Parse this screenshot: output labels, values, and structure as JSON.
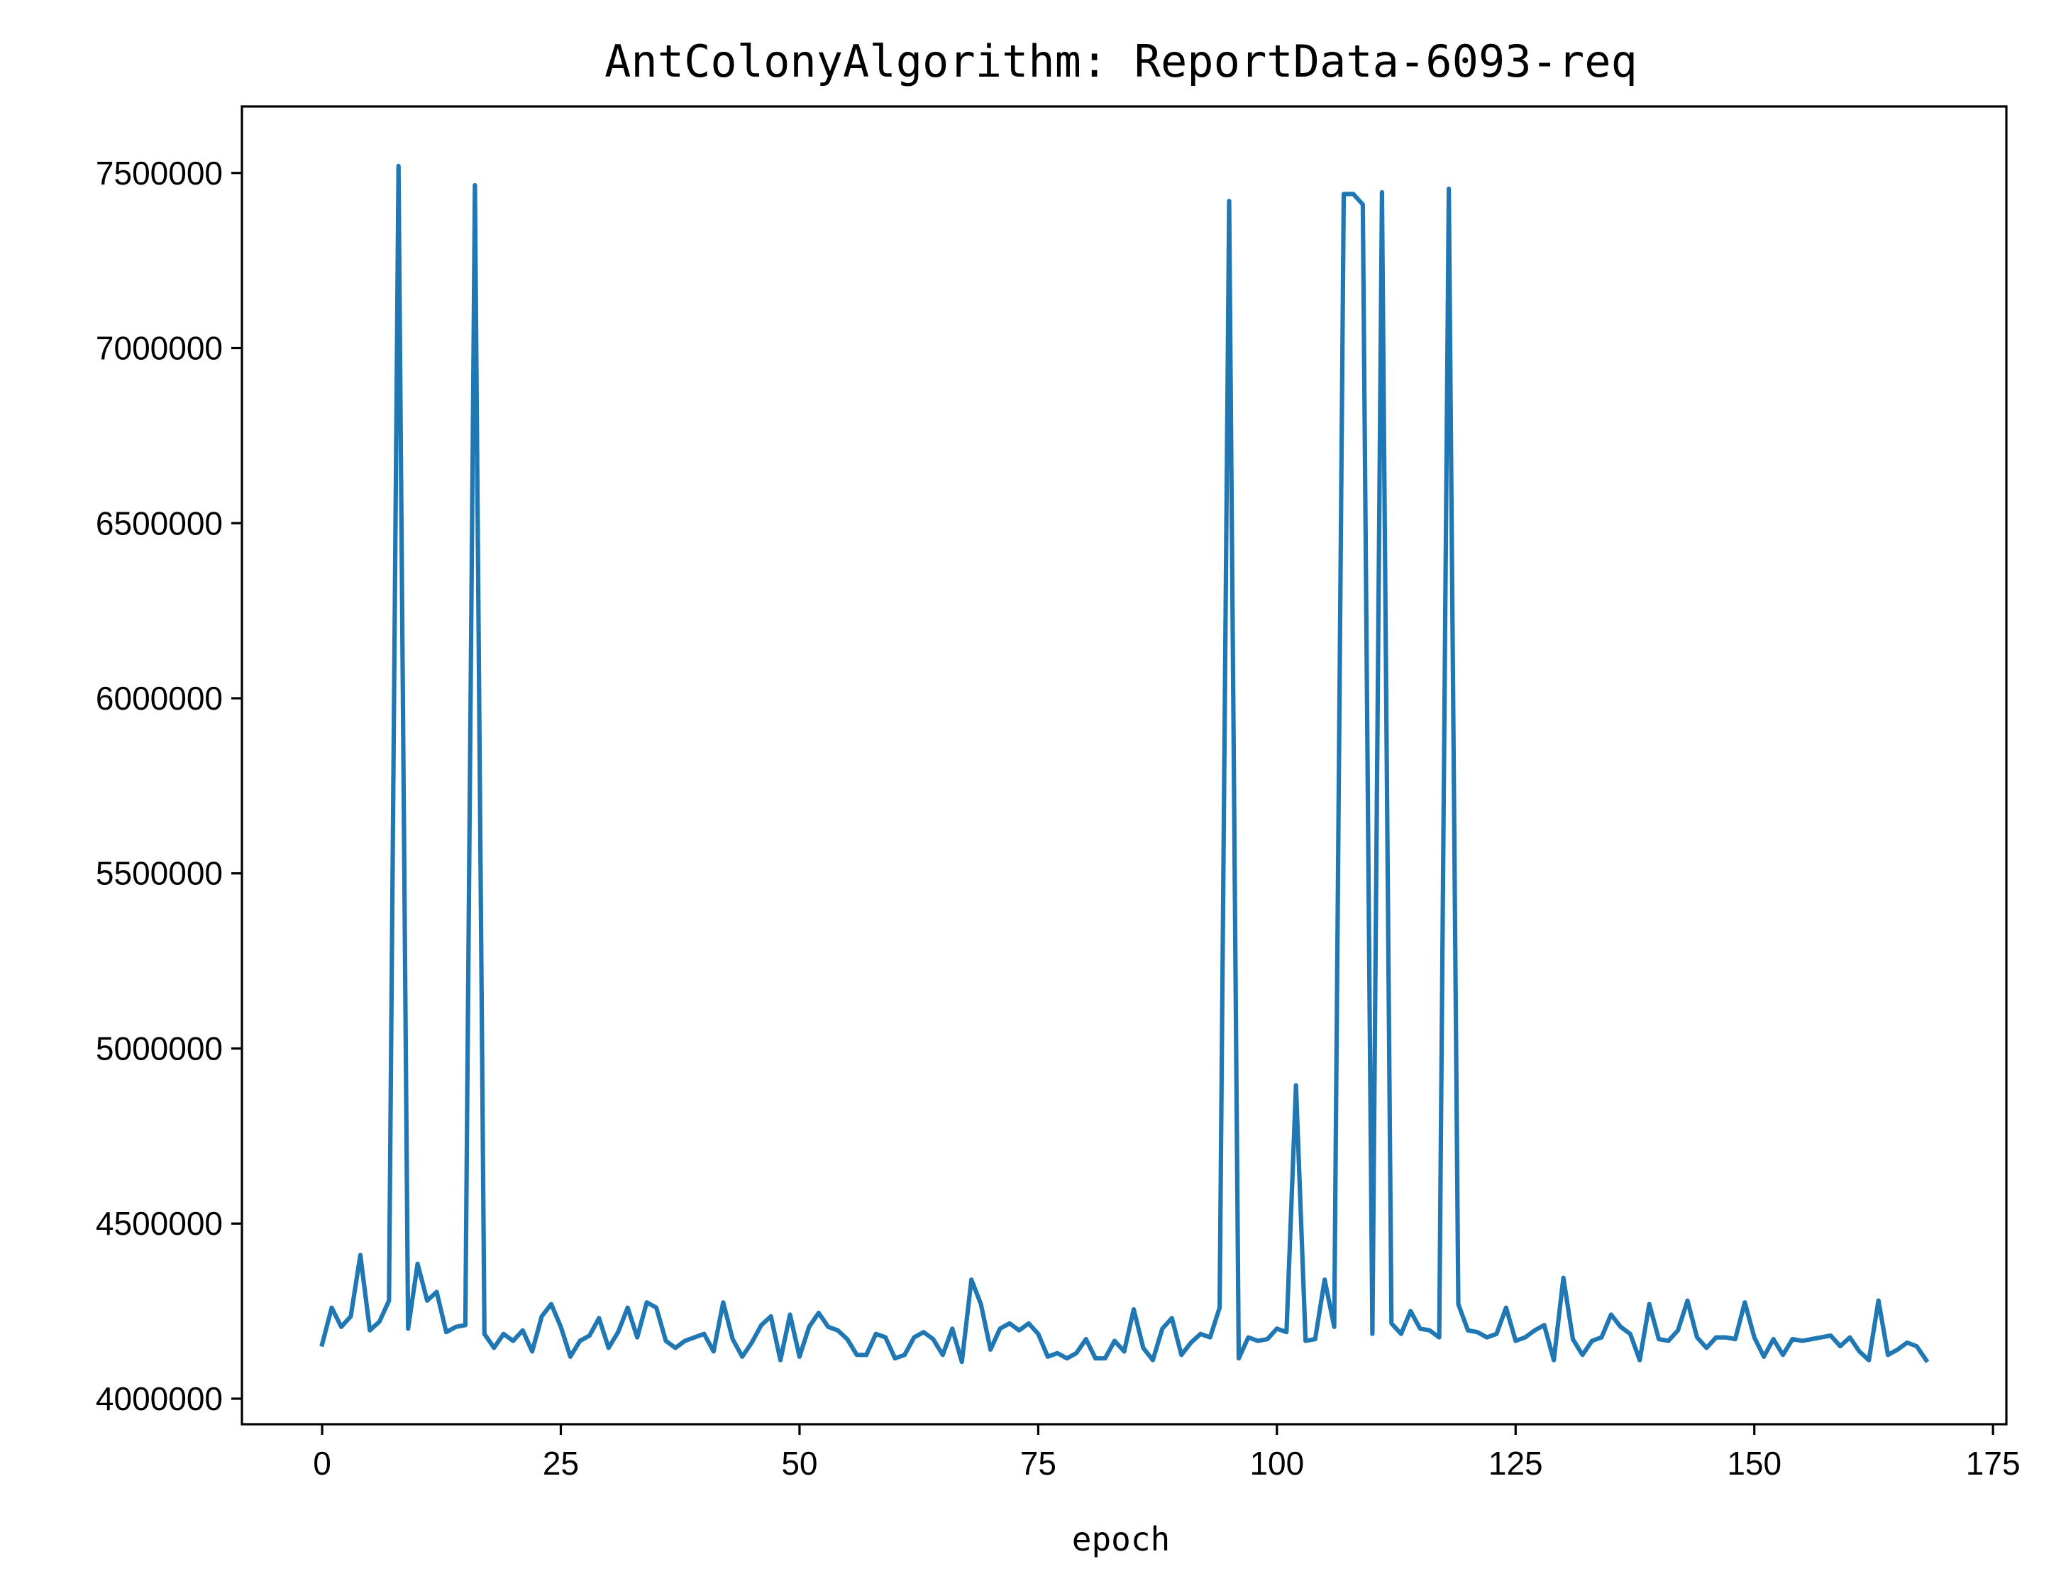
{
  "chart_data": {
    "type": "line",
    "title": "AntColonyAlgorithm: ReportData-6093-req",
    "xlabel": "epoch",
    "ylabel": "",
    "xlim": [
      -8.4,
      176.4
    ],
    "ylim": [
      3927000,
      7690000
    ],
    "xticks": [
      0,
      25,
      50,
      75,
      100,
      125,
      150,
      175
    ],
    "xtick_labels": [
      "0",
      "25",
      "50",
      "75",
      "100",
      "125",
      "150",
      "175"
    ],
    "yticks": [
      4000000,
      4500000,
      5000000,
      5500000,
      6000000,
      6500000,
      7000000,
      7500000
    ],
    "ytick_labels": [
      "4000000",
      "4500000",
      "5000000",
      "5500000",
      "6000000",
      "6500000",
      "7000000",
      "7500000"
    ],
    "grid": false,
    "series": [
      {
        "color": "#1f77b4",
        "x": [
          0,
          1,
          2,
          3,
          4,
          5,
          6,
          7,
          8,
          9,
          10,
          11,
          12,
          13,
          14,
          15,
          16,
          17,
          18,
          19,
          20,
          21,
          22,
          23,
          24,
          25,
          26,
          27,
          28,
          29,
          30,
          31,
          32,
          33,
          34,
          35,
          36,
          37,
          38,
          39,
          40,
          41,
          42,
          43,
          44,
          45,
          46,
          47,
          48,
          49,
          50,
          51,
          52,
          53,
          54,
          55,
          56,
          57,
          58,
          59,
          60,
          61,
          62,
          63,
          64,
          65,
          66,
          67,
          68,
          69,
          70,
          71,
          72,
          73,
          74,
          75,
          76,
          77,
          78,
          79,
          80,
          81,
          82,
          83,
          84,
          85,
          86,
          87,
          88,
          89,
          90,
          91,
          92,
          93,
          94,
          95,
          96,
          97,
          98,
          99,
          100,
          101,
          102,
          103,
          104,
          105,
          106,
          107,
          108,
          109,
          110,
          111,
          112,
          113,
          114,
          115,
          116,
          117,
          118,
          119,
          120,
          121,
          122,
          123,
          124,
          125,
          126,
          127,
          128,
          129,
          130,
          131,
          132,
          133,
          134,
          135,
          136,
          137,
          138,
          139,
          140,
          141,
          142,
          143,
          144,
          145,
          146,
          147,
          148,
          149,
          150,
          151,
          152,
          153,
          154,
          155,
          156,
          157,
          158,
          159,
          160,
          161,
          162,
          163,
          164,
          165,
          166,
          167,
          168
        ],
        "y": [
          4155000,
          4260000,
          4205000,
          4235000,
          4410000,
          4195000,
          4220000,
          4280000,
          7520000,
          4200000,
          4385000,
          4280000,
          4305000,
          4190000,
          4205000,
          4210000,
          7465000,
          4185000,
          4145000,
          4185000,
          4165000,
          4195000,
          4135000,
          4235000,
          4270000,
          4205000,
          4120000,
          4165000,
          4180000,
          4230000,
          4145000,
          4190000,
          4260000,
          4175000,
          4275000,
          4260000,
          4165000,
          4145000,
          4165000,
          4175000,
          4185000,
          4135000,
          4275000,
          4170000,
          4120000,
          4160000,
          4210000,
          4235000,
          4110000,
          4240000,
          4120000,
          4205000,
          4245000,
          4205000,
          4195000,
          4170000,
          4125000,
          4125000,
          4185000,
          4175000,
          4115000,
          4125000,
          4175000,
          4190000,
          4170000,
          4125000,
          4200000,
          4105000,
          4340000,
          4270000,
          4140000,
          4200000,
          4215000,
          4195000,
          4215000,
          4185000,
          4120000,
          4130000,
          4115000,
          4130000,
          4170000,
          4115000,
          4115000,
          4165000,
          4135000,
          4255000,
          4145000,
          4110000,
          4200000,
          4230000,
          4125000,
          4160000,
          4185000,
          4175000,
          4260000,
          7420000,
          4115000,
          4175000,
          4165000,
          4170000,
          4200000,
          4190000,
          4895000,
          4165000,
          4170000,
          4340000,
          4205000,
          7440000,
          7440000,
          7410000,
          4185000,
          7445000,
          4215000,
          4185000,
          4250000,
          4200000,
          4195000,
          4175000,
          7455000,
          4270000,
          4195000,
          4190000,
          4175000,
          4185000,
          4260000,
          4165000,
          4175000,
          4195000,
          4210000,
          4110000,
          4345000,
          4170000,
          4125000,
          4165000,
          4175000,
          4240000,
          4205000,
          4185000,
          4110000,
          4270000,
          4170000,
          4165000,
          4195000,
          4280000,
          4175000,
          4145000,
          4175000,
          4175000,
          4170000,
          4275000,
          4175000,
          4120000,
          4170000,
          4125000,
          4170000,
          4165000,
          4170000,
          4175000,
          4180000,
          4150000,
          4175000,
          4135000,
          4110000,
          4280000,
          4125000,
          4140000,
          4160000,
          4150000,
          4110000
        ]
      }
    ]
  }
}
